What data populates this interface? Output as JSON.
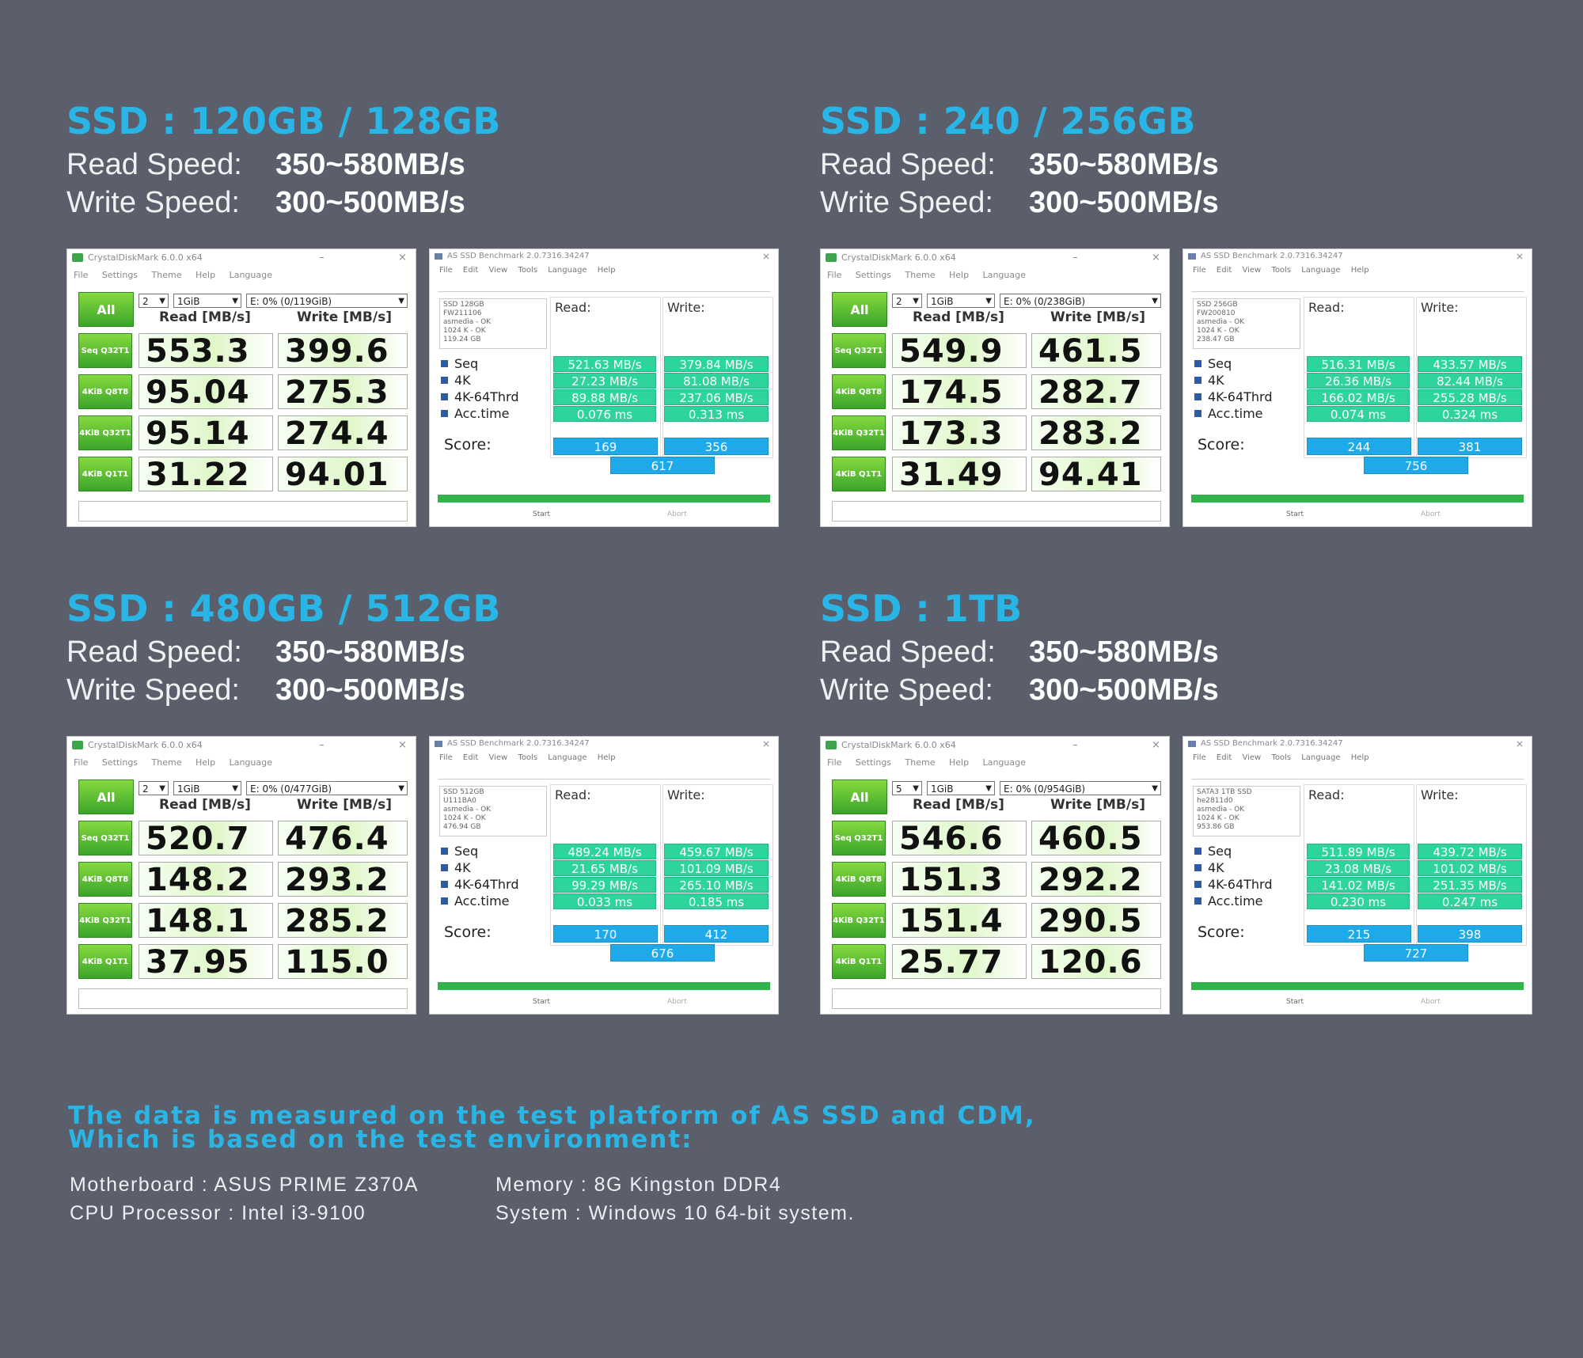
{
  "colors": {
    "background": "#5a5f6b",
    "heading": "#29b6e6",
    "cdm_green": "#3aa52a",
    "asssd_value": "#2fd39e",
    "asssd_score": "#1fa9e8",
    "asssd_progress": "#2fb34a"
  },
  "labels": {
    "read_speed": "Read Speed:",
    "write_speed": "Write Speed:"
  },
  "cdm_ui": {
    "title": "CrystalDiskMark 6.0.0 x64",
    "menu": [
      "File",
      "Settings",
      "Theme",
      "Help",
      "Language"
    ],
    "all_button": "All",
    "read_header": "Read [MB/s]",
    "write_header": "Write [MB/s]",
    "size": "1GiB",
    "row_labels": [
      "Seq Q32T1",
      "4KiB Q8T8",
      "4KiB Q32T1",
      "4KiB Q1T1"
    ]
  },
  "asssd_ui": {
    "title": "AS SSD Benchmark 2.0.7316.34247",
    "menu": [
      "File",
      "Edit",
      "View",
      "Tools",
      "Language",
      "Help"
    ],
    "read_header": "Read:",
    "write_header": "Write:",
    "tests": [
      "Seq",
      "4K",
      "4K-64Thrd",
      "Acc.time"
    ],
    "score_label": "Score:",
    "start_button": "Start",
    "abort_button": "Abort"
  },
  "panels": [
    {
      "heading": "SSD : 120GB / 128GB",
      "read_speed": "350~580MB/s",
      "write_speed": "300~500MB/s",
      "cdm": {
        "threads": "2",
        "drive": "E: 0% (0/119GiB)",
        "read": [
          "553.3",
          "95.04",
          "95.14",
          "31.22"
        ],
        "write": [
          "399.6",
          "275.3",
          "274.4",
          "94.01"
        ]
      },
      "asssd": {
        "drive_info": "SSD 128GB\nFW211106\nasmedia - OK\n1024 K - OK\n119.24 GB",
        "read": [
          "521.63 MB/s",
          "27.23 MB/s",
          "89.88 MB/s",
          "0.076 ms"
        ],
        "write": [
          "379.84 MB/s",
          "81.08 MB/s",
          "237.06 MB/s",
          "0.313 ms"
        ],
        "score_read": "169",
        "score_write": "356",
        "score_total": "617"
      }
    },
    {
      "heading": "SSD : 240 / 256GB",
      "read_speed": "350~580MB/s",
      "write_speed": "300~500MB/s",
      "cdm": {
        "threads": "2",
        "drive": "E: 0% (0/238GiB)",
        "read": [
          "549.9",
          "174.5",
          "173.3",
          "31.49"
        ],
        "write": [
          "461.5",
          "282.7",
          "283.2",
          "94.41"
        ]
      },
      "asssd": {
        "drive_info": "SSD 256GB\nFW200810\nasmedia - OK\n1024 K - OK\n238.47 GB",
        "read": [
          "516.31 MB/s",
          "26.36 MB/s",
          "166.02 MB/s",
          "0.074 ms"
        ],
        "write": [
          "433.57 MB/s",
          "82.44 MB/s",
          "255.28 MB/s",
          "0.324 ms"
        ],
        "score_read": "244",
        "score_write": "381",
        "score_total": "756"
      }
    },
    {
      "heading": "SSD : 480GB / 512GB",
      "read_speed": "350~580MB/s",
      "write_speed": "300~500MB/s",
      "cdm": {
        "threads": "2",
        "drive": "E: 0% (0/477GiB)",
        "read": [
          "520.7",
          "148.2",
          "148.1",
          "37.95"
        ],
        "write": [
          "476.4",
          "293.2",
          "285.2",
          "115.0"
        ]
      },
      "asssd": {
        "drive_info": "SSD 512GB\nU111BA0\nasmedia - OK\n1024 K - OK\n476.94 GB",
        "read": [
          "489.24 MB/s",
          "21.65 MB/s",
          "99.29 MB/s",
          "0.033 ms"
        ],
        "write": [
          "459.67 MB/s",
          "101.09 MB/s",
          "265.10 MB/s",
          "0.185 ms"
        ],
        "score_read": "170",
        "score_write": "412",
        "score_total": "676"
      }
    },
    {
      "heading": "SSD : 1TB",
      "read_speed": "350~580MB/s",
      "write_speed": "300~500MB/s",
      "cdm": {
        "threads": "5",
        "drive": "E: 0% (0/954GiB)",
        "read": [
          "546.6",
          "151.3",
          "151.4",
          "25.77"
        ],
        "write": [
          "460.5",
          "292.2",
          "290.5",
          "120.6"
        ]
      },
      "asssd": {
        "drive_info": "SATA3 1TB SSD\nhe2811d0\nasmedia - OK\n1024 K - OK\n953.86 GB",
        "read": [
          "511.89 MB/s",
          "23.08 MB/s",
          "141.02 MB/s",
          "0.230 ms"
        ],
        "write": [
          "439.72 MB/s",
          "101.02 MB/s",
          "251.35 MB/s",
          "0.247 ms"
        ],
        "score_read": "215",
        "score_write": "398",
        "score_total": "727"
      }
    }
  ],
  "footer": {
    "note_line1": "The data is measured on the test platform of AS SSD and CDM,",
    "note_line2": "Which is based on the test environment:",
    "motherboard": "Motherboard : ASUS PRIME Z370A",
    "cpu": "CPU Processor : Intel i3-9100",
    "memory": "Memory : 8G Kingston DDR4",
    "system": "System : Windows 10 64-bit system."
  }
}
